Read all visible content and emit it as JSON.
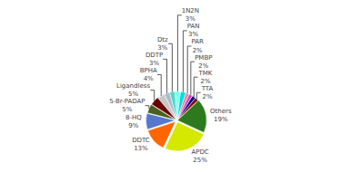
{
  "chart_data": {
    "type": "pie",
    "categories": [
      "APDC",
      "Others",
      "TTA",
      "TMK",
      "PMBP",
      "PAR",
      "PAN",
      "1N2N",
      "Dtz",
      "DDTP",
      "BPHA",
      "Ligandless",
      "5-Br-PADAP",
      "8-HQ",
      "DDTC"
    ],
    "values": [
      25,
      19,
      2,
      2,
      2,
      2,
      3,
      3,
      3,
      3,
      4,
      5,
      5,
      9,
      13
    ],
    "value_labels": [
      "25%",
      "19%",
      "2%",
      "2%",
      "2%",
      "2%",
      "3%",
      "3%",
      "3%",
      "3%",
      "4%",
      "5%",
      "5%",
      "9%",
      "13%"
    ],
    "colors": [
      "#d4e800",
      "#2d7a1e",
      "#8b0000",
      "#00008b",
      "#cc44cc",
      "#ff80a0",
      "#00dddd",
      "#80ffee",
      "#50d8c8",
      "#aabbcc",
      "#c8c8c8",
      "#6b0000",
      "#4a6020",
      "#5577cc",
      "#ff6600"
    ],
    "data_labels": true
  }
}
